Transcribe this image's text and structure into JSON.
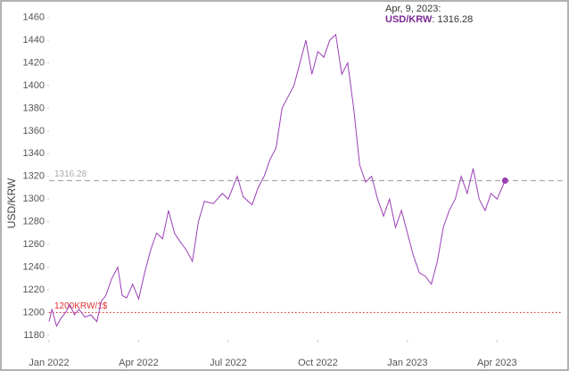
{
  "chart_data": {
    "type": "line",
    "y_label": "USD/KRW",
    "xlim": [
      0,
      17.2
    ],
    "xticks": [
      {
        "value": 0,
        "label": "Jan 2022"
      },
      {
        "value": 3,
        "label": "Apr 2022"
      },
      {
        "value": 6,
        "label": "Jul 2022"
      },
      {
        "value": 9,
        "label": "Oct 2022"
      },
      {
        "value": 12,
        "label": "Jan 2023"
      },
      {
        "value": 15,
        "label": "Apr 2023"
      }
    ],
    "ylim": [
      1176,
      1466
    ],
    "yticks": [
      1180,
      1200,
      1220,
      1240,
      1260,
      1280,
      1300,
      1320,
      1340,
      1360,
      1380,
      1400,
      1420,
      1440,
      1460
    ],
    "x": [
      0,
      0.1,
      0.25,
      0.4,
      0.55,
      0.7,
      0.85,
      1.0,
      1.2,
      1.4,
      1.6,
      1.75,
      1.9,
      2.1,
      2.3,
      2.45,
      2.6,
      2.8,
      3.0,
      3.2,
      3.4,
      3.6,
      3.8,
      4.0,
      4.2,
      4.4,
      4.6,
      4.8,
      5.0,
      5.2,
      5.5,
      5.8,
      6.0,
      6.3,
      6.5,
      6.8,
      7.0,
      7.2,
      7.4,
      7.6,
      7.8,
      8.0,
      8.2,
      8.4,
      8.6,
      8.8,
      9.0,
      9.2,
      9.4,
      9.6,
      9.8,
      10.0,
      10.2,
      10.4,
      10.6,
      10.8,
      11.0,
      11.2,
      11.4,
      11.6,
      11.8,
      12.0,
      12.2,
      12.4,
      12.6,
      12.8,
      13.0,
      13.2,
      13.4,
      13.6,
      13.8,
      14.0,
      14.2,
      14.4,
      14.6,
      14.8,
      15.0,
      15.27
    ],
    "series": [
      {
        "name": "USD/KRW",
        "color": "#9b3fb5",
        "values": [
          1192,
          1203,
          1188,
          1195,
          1200,
          1207,
          1198,
          1203,
          1196,
          1198,
          1192,
          1210,
          1215,
          1230,
          1240,
          1215,
          1213,
          1225,
          1212,
          1235,
          1255,
          1270,
          1265,
          1290,
          1270,
          1262,
          1255,
          1245,
          1280,
          1298,
          1296,
          1305,
          1300,
          1320,
          1302,
          1295,
          1310,
          1320,
          1335,
          1345,
          1380,
          1390,
          1400,
          1420,
          1440,
          1410,
          1430,
          1425,
          1440,
          1445,
          1410,
          1420,
          1380,
          1330,
          1315,
          1320,
          1300,
          1285,
          1300,
          1275,
          1290,
          1270,
          1250,
          1235,
          1232,
          1225,
          1245,
          1275,
          1290,
          1300,
          1320,
          1305,
          1327,
          1300,
          1290,
          1305,
          1300,
          1316.28
        ]
      }
    ],
    "reference_lines": [
      {
        "value": 1316.28,
        "color": "#aaaaaa"
      },
      {
        "value": 1200,
        "label": "1200KRW/1$",
        "color": "#e03030"
      }
    ],
    "tooltip": {
      "date": "Apr, 9, 2023:"
    }
  }
}
